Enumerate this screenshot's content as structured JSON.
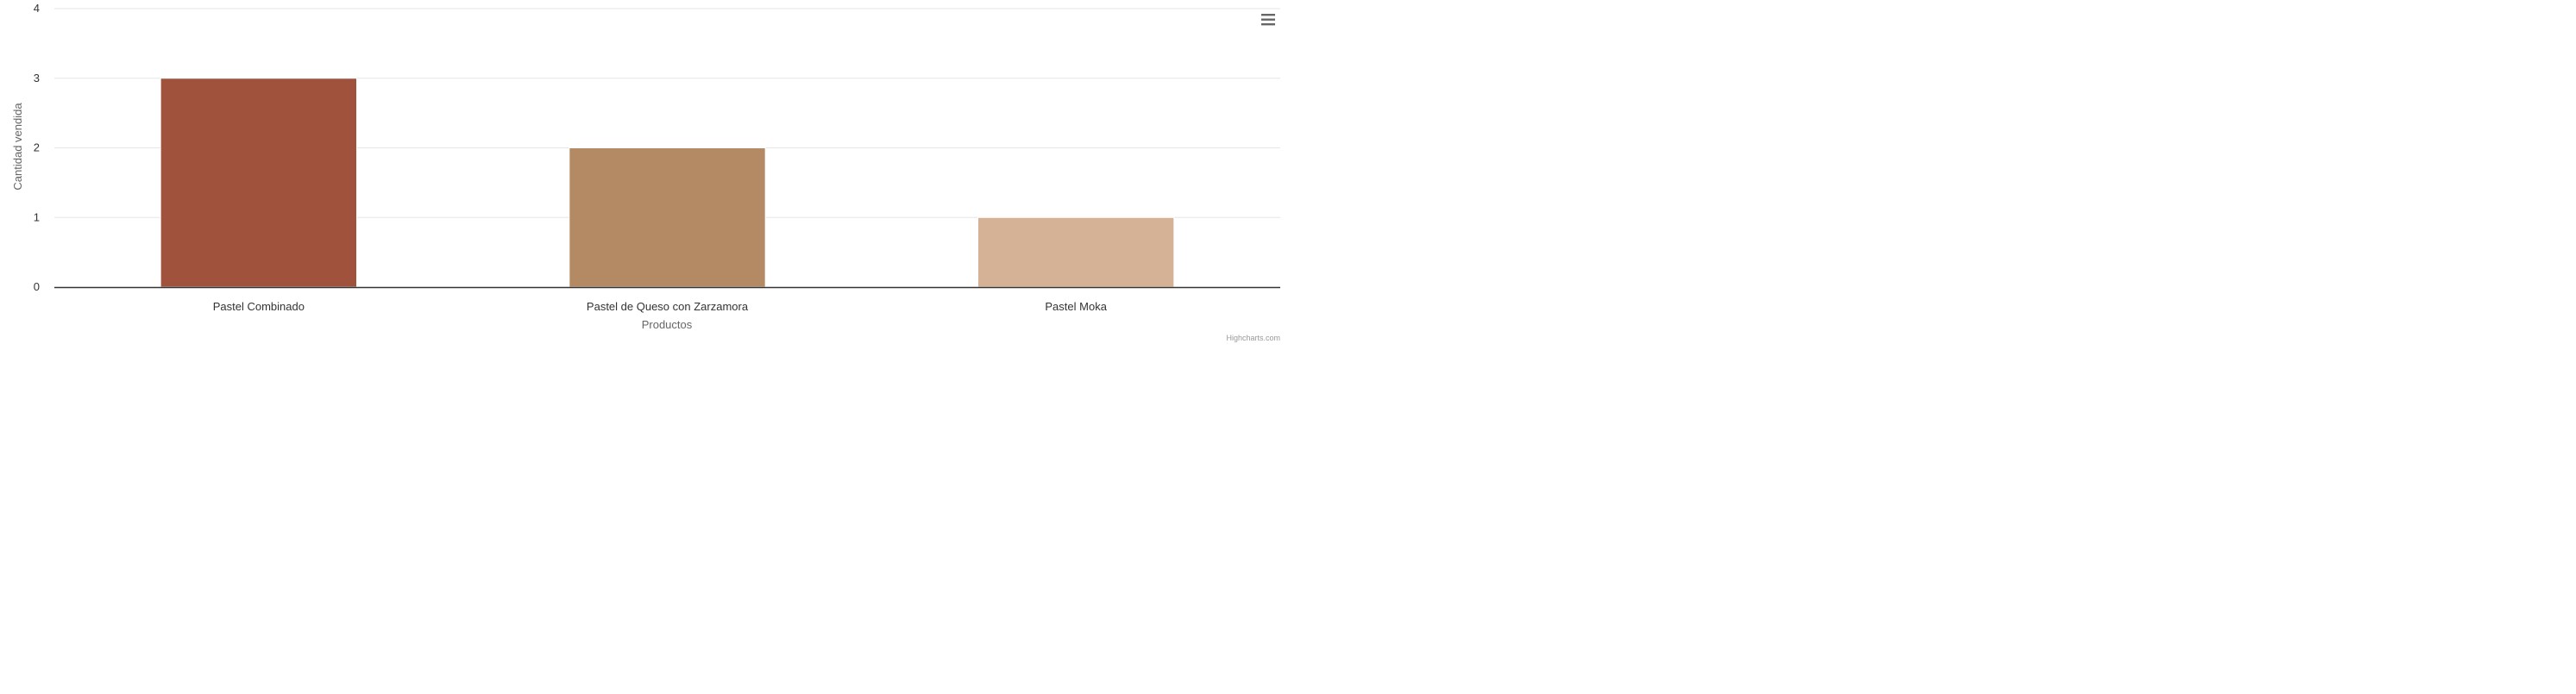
{
  "chart_data": {
    "type": "bar",
    "title": "",
    "xlabel": "Productos",
    "ylabel": "Cantidad vendida",
    "categories": [
      "Pastel Combinado",
      "Pastel de Queso con Zarzamora",
      "Pastel Moka"
    ],
    "values": [
      3,
      2,
      1
    ],
    "colors": [
      "#a0523d",
      "#b48a64",
      "#d5b296"
    ],
    "ylim": [
      0,
      4
    ],
    "yticks": [
      0,
      1,
      2,
      3,
      4
    ],
    "grid": true,
    "legend": "none"
  },
  "credits": "Highcharts.com",
  "menu": {
    "icon": "hamburger-menu-icon"
  }
}
